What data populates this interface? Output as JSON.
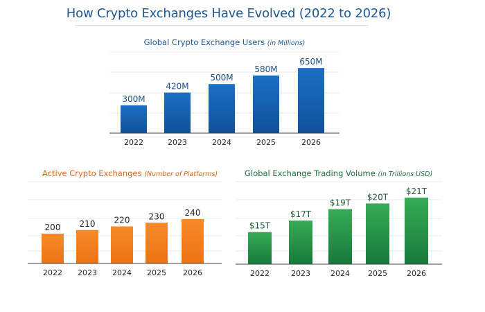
{
  "title": "How Crypto Exchanges Have Evolved (2022 to 2026)",
  "chart_data": [
    {
      "type": "bar",
      "title": "Global Crypto Exchange Users",
      "subtitle": "(in Millions)",
      "categories": [
        "2022",
        "2023",
        "2024",
        "2025",
        "2026"
      ],
      "values": [
        300,
        420,
        500,
        580,
        650
      ],
      "data_labels": [
        "300M",
        "420M",
        "500M",
        "580M",
        "650M"
      ],
      "ylim": [
        40,
        800
      ],
      "grid": true,
      "color": "#1565b5"
    },
    {
      "type": "bar",
      "title": "Active Crypto Exchanges",
      "subtitle": "(Number of Platforms)",
      "categories": [
        "2022",
        "2023",
        "2024",
        "2025",
        "2026"
      ],
      "values": [
        200,
        210,
        220,
        230,
        240
      ],
      "data_labels": [
        "200",
        "210",
        "220",
        "230",
        "240"
      ],
      "ylim": [
        118,
        343
      ],
      "grid": true,
      "color": "#f0801e"
    },
    {
      "type": "bar",
      "title": "Global Exchange Trading Volume",
      "subtitle": "(in Trillions USD)",
      "categories": [
        "2022",
        "2023",
        "2024",
        "2025",
        "2026"
      ],
      "values": [
        15,
        17,
        19,
        20,
        21
      ],
      "data_labels": [
        "$15T",
        "$17T",
        "$19T",
        "$20T",
        "$21T"
      ],
      "ylim": [
        9.4,
        23.8
      ],
      "grid": true,
      "color": "#24944a"
    }
  ]
}
